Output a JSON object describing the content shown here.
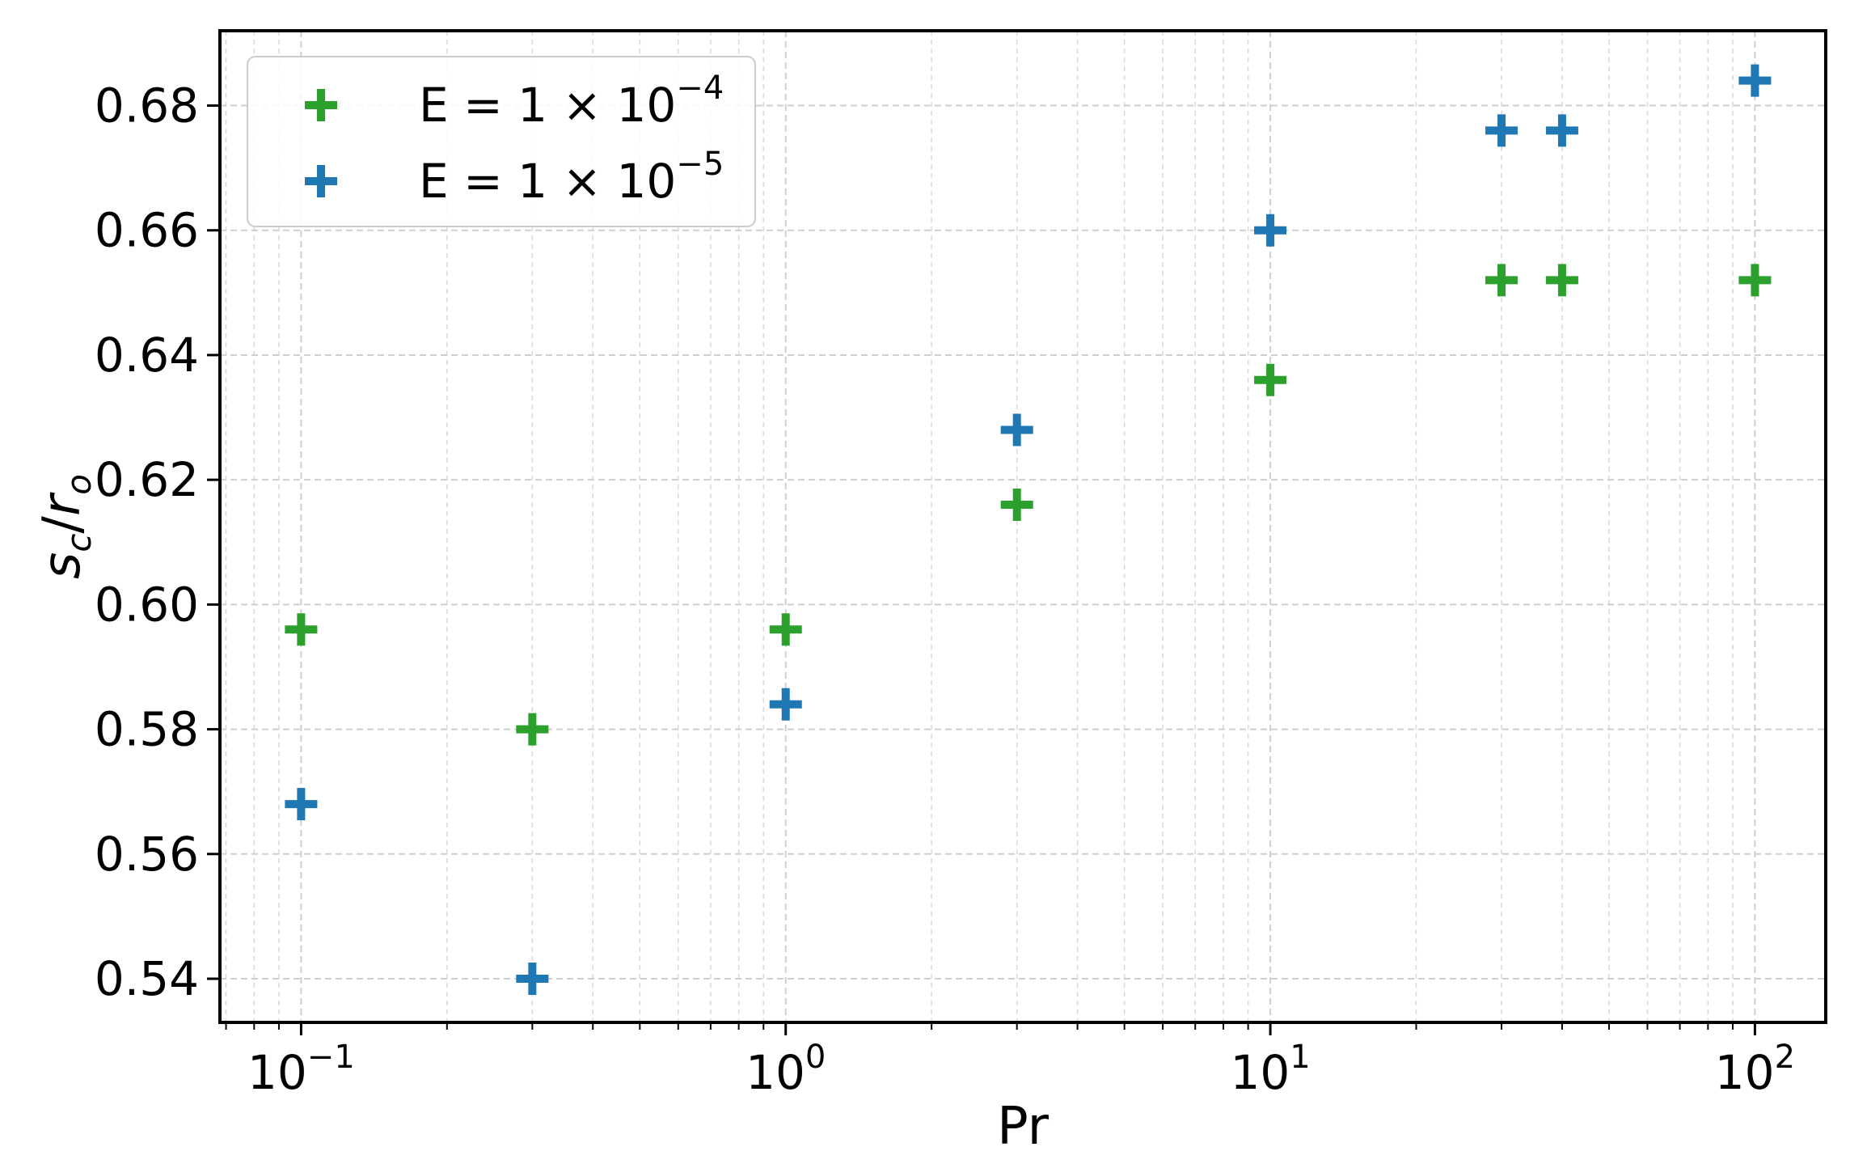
{
  "chart_data": {
    "type": "scatter",
    "title": "",
    "xlabel": "Pr",
    "ylabel": "s_c/r_o",
    "xscale": "log",
    "xlim": [
      0.068,
      140
    ],
    "ylim": [
      0.533,
      0.692
    ],
    "grid": true,
    "legend_position": "top-left",
    "x_ticks": [
      {
        "value": 0.1,
        "base": "10",
        "exp": "−1"
      },
      {
        "value": 1,
        "base": "10",
        "exp": "0"
      },
      {
        "value": 10,
        "base": "10",
        "exp": "1"
      },
      {
        "value": 100,
        "base": "10",
        "exp": "2"
      }
    ],
    "y_ticks": [
      "0.54",
      "0.56",
      "0.58",
      "0.60",
      "0.62",
      "0.64",
      "0.66",
      "0.68"
    ],
    "series": [
      {
        "name": "E = 1 × 10^−4",
        "legend_prefix": "E = 1 × 10",
        "legend_exp": "−4",
        "color": "#2ca02c",
        "marker": "plus",
        "points": [
          {
            "x": 0.1,
            "y": 0.596
          },
          {
            "x": 0.3,
            "y": 0.58
          },
          {
            "x": 1,
            "y": 0.596
          },
          {
            "x": 3,
            "y": 0.616
          },
          {
            "x": 10,
            "y": 0.636
          },
          {
            "x": 30,
            "y": 0.652
          },
          {
            "x": 40,
            "y": 0.652
          },
          {
            "x": 100,
            "y": 0.652
          }
        ]
      },
      {
        "name": "E = 1 × 10^−5",
        "legend_prefix": "E = 1 × 10",
        "legend_exp": "−5",
        "color": "#1f77b4",
        "marker": "plus",
        "points": [
          {
            "x": 0.1,
            "y": 0.568
          },
          {
            "x": 0.3,
            "y": 0.54
          },
          {
            "x": 1,
            "y": 0.584
          },
          {
            "x": 3,
            "y": 0.628
          },
          {
            "x": 10,
            "y": 0.66
          },
          {
            "x": 30,
            "y": 0.676
          },
          {
            "x": 40,
            "y": 0.676
          },
          {
            "x": 100,
            "y": 0.684
          }
        ]
      }
    ]
  }
}
